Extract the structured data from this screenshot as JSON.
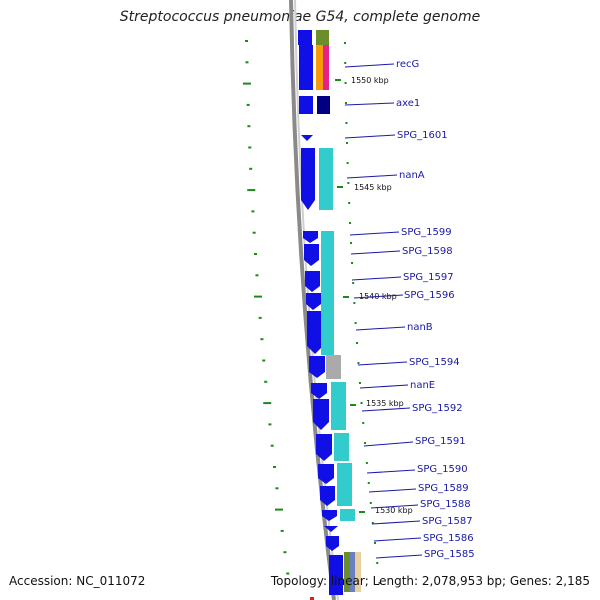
{
  "title": "Streptococcus pneumoniae G54, complete genome",
  "footer": {
    "accession": "Accession: NC_011072",
    "summary": "Topology: linear; Length: 2,078,953 bp; Genes: 2,185"
  },
  "colors": {
    "gene_arrow": "#1010e6",
    "cog_cyan": "#33cccc",
    "backbone": "#8a8a8a",
    "tick": "#1a8a1a",
    "label": "#1a1aa6"
  },
  "scale_labels": [
    "1550 kbp",
    "1545 kbp",
    "1540 kbp",
    "1535 kbp",
    "1530 kbp"
  ],
  "genes": [
    {
      "label": "recG"
    },
    {
      "label": "axe1"
    },
    {
      "label": "SPG_1601"
    },
    {
      "label": "nanA"
    },
    {
      "label": "SPG_1599"
    },
    {
      "label": "SPG_1598"
    },
    {
      "label": "SPG_1597"
    },
    {
      "label": "SPG_1596"
    },
    {
      "label": "nanB"
    },
    {
      "label": "SPG_1594"
    },
    {
      "label": "nanE"
    },
    {
      "label": "SPG_1592"
    },
    {
      "label": "SPG_1591"
    },
    {
      "label": "SPG_1590"
    },
    {
      "label": "SPG_1589"
    },
    {
      "label": "SPG_1588"
    },
    {
      "label": "SPG_1587"
    },
    {
      "label": "SPG_1586"
    },
    {
      "label": "SPG_1585"
    }
  ]
}
